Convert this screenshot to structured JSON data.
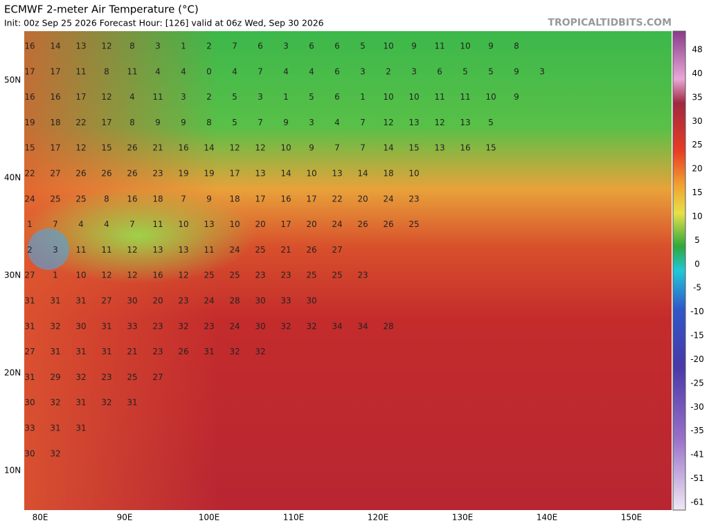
{
  "header": {
    "title": "ECMWF 2-meter Air Temperature (°C)",
    "subtitle": "Init: 00z Sep 25 2026   Forecast Hour: [126]   valid at 06z Wed, Sep 30 2026",
    "site": "TROPICALTIDBITS.COM"
  },
  "map": {
    "lat_labels": [
      "50N",
      "40N",
      "30N",
      "20N",
      "10N"
    ],
    "lon_labels": [
      "80E",
      "90E",
      "100E",
      "110E",
      "120E",
      "130E",
      "140E",
      "150E"
    ],
    "temperature_rows": [
      [
        "16",
        "14",
        "13",
        "12",
        "8",
        "3",
        "1",
        "2",
        "7",
        "6",
        "3",
        "6",
        "6",
        "5",
        "10",
        "9",
        "11",
        "10",
        "9",
        "8"
      ],
      [
        "17",
        "17",
        "11",
        "8",
        "11",
        "4",
        "4",
        "0",
        "4",
        "7",
        "4",
        "4",
        "6",
        "3",
        "2",
        "3",
        "6",
        "5",
        "5",
        "9",
        "3"
      ],
      [
        "16",
        "16",
        "17",
        "12",
        "4",
        "11",
        "3",
        "2",
        "5",
        "3",
        "1",
        "5",
        "6",
        "1",
        "10",
        "10",
        "11",
        "11",
        "10",
        "9"
      ],
      [
        "19",
        "18",
        "22",
        "17",
        "8",
        "9",
        "9",
        "8",
        "5",
        "7",
        "9",
        "3",
        "4",
        "7",
        "12",
        "13",
        "12",
        "13",
        "5"
      ],
      [
        "15",
        "17",
        "12",
        "15",
        "26",
        "21",
        "16",
        "14",
        "12",
        "12",
        "10",
        "9",
        "7",
        "7",
        "14",
        "15",
        "13",
        "16",
        "15"
      ],
      [
        "22",
        "27",
        "26",
        "26",
        "26",
        "23",
        "19",
        "19",
        "17",
        "13",
        "14",
        "10",
        "13",
        "14",
        "18",
        "10"
      ],
      [
        "24",
        "25",
        "25",
        "8",
        "16",
        "18",
        "7",
        "9",
        "18",
        "17",
        "16",
        "17",
        "22",
        "20",
        "24",
        "23"
      ],
      [
        "1",
        "7",
        "4",
        "4",
        "7",
        "11",
        "10",
        "13",
        "10",
        "20",
        "17",
        "20",
        "24",
        "26",
        "26",
        "25"
      ],
      [
        "2",
        "3",
        "11",
        "11",
        "12",
        "13",
        "13",
        "11",
        "24",
        "25",
        "21",
        "26",
        "27"
      ],
      [
        "27",
        "1",
        "10",
        "12",
        "12",
        "16",
        "12",
        "25",
        "25",
        "23",
        "23",
        "25",
        "25",
        "23"
      ],
      [
        "31",
        "31",
        "31",
        "27",
        "30",
        "20",
        "23",
        "24",
        "28",
        "30",
        "33",
        "30"
      ],
      [
        "31",
        "32",
        "30",
        "31",
        "33",
        "23",
        "32",
        "23",
        "24",
        "30",
        "32",
        "32",
        "34",
        "34",
        "28"
      ],
      [
        "27",
        "31",
        "31",
        "31",
        "21",
        "23",
        "26",
        "31",
        "32",
        "32"
      ],
      [
        "31",
        "29",
        "32",
        "23",
        "25",
        "27"
      ],
      [
        "30",
        "32",
        "31",
        "32",
        "31"
      ],
      [
        "33",
        "31",
        "31"
      ],
      [
        "30",
        "32"
      ]
    ]
  },
  "colorbar": {
    "labels": [
      "48",
      "40",
      "35",
      "30",
      "25",
      "20",
      "15",
      "10",
      "5",
      "0",
      "-5",
      "-10",
      "-15",
      "-20",
      "-25",
      "-30",
      "-35",
      "-41",
      "-51",
      "-61"
    ]
  }
}
